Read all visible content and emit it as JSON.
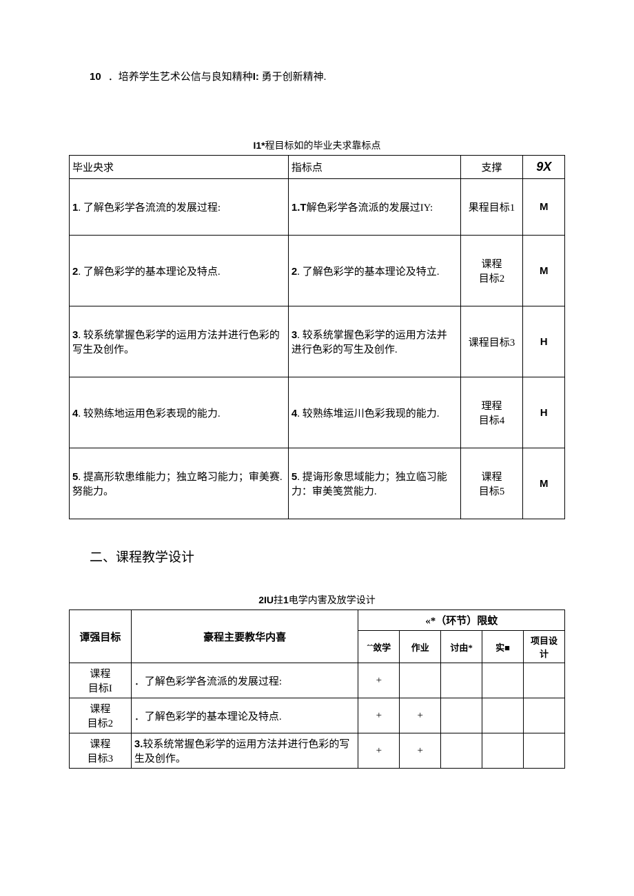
{
  "intro": {
    "num": "10",
    "text_before": "．培养学生艺术公信与良知精种",
    "bold_mid": "I:",
    "text_after": " 勇于创新精神."
  },
  "table1": {
    "caption_prefix": "I1*",
    "caption_rest": "程目标如的毕业夫求靠标点",
    "headers": {
      "c1": "毕业央求",
      "c2": "指标点",
      "c3": "支撑",
      "c4": "9X"
    },
    "rows": [
      {
        "num1": "1",
        "t1": ". 了解色彩学各流流的发展过程:",
        "num2": "1.T",
        "t2": "解色彩学各流派的发展过IY:",
        "c3": "果程目标1",
        "c4": "M"
      },
      {
        "num1": "2",
        "t1": ". 了解色彩学的基本理论及特点.",
        "num2": "2",
        "t2": ". 了解色彩学的基本理论及特立.",
        "c3": "课程\n目标2",
        "c4": "M"
      },
      {
        "num1": "3",
        "t1": ". 较系统掌握色彩学的运用方法并进行色彩的写生及创作。",
        "num2": "3",
        "t2": ". 较系统掌握色彩学的运用方法并进行色彩的写生及创作.",
        "c3": "课程目标3",
        "c4": "H"
      },
      {
        "num1": "4",
        "t1": ". 较熟练地运用色彩表现的能力.",
        "num2": "4",
        "t2": ". 较熟练堆运川色彩我现的能力.",
        "c3": "理程\n目标4",
        "c4": "H"
      },
      {
        "num1": "5",
        "t1": ". 提高形软患维能力；独立略习能力；审美赛. 努能力。",
        "num2": "5",
        "t2": ". 提诲形象思域能力；独立临习能力：审美笺赏能力.",
        "c3": "课程\n目标5",
        "c4": "M"
      }
    ]
  },
  "section_heading": "二、课程教学设计",
  "table2": {
    "caption_prefix": "2IU",
    "caption_mid": "拄",
    "caption_prefix2": "1",
    "caption_rest": "电学内害及放学设计",
    "headers": {
      "goal": "谭强目标",
      "content": "豪程主要教华内喜",
      "group": "«*（环节）限蚊",
      "sub": {
        "s1": "ˆˆ敛学",
        "s2": "作业",
        "s3": "讨由*",
        "s4": "实■",
        "s5": "项目设计"
      }
    },
    "rows": [
      {
        "goal": "课程\n目标I",
        "content_pre": "．",
        "content": "了解色彩学各流派的发展过程:",
        "marks": [
          "+",
          "",
          "",
          "",
          ""
        ]
      },
      {
        "goal": "课程\n目标2",
        "content_pre": "．",
        "content": "了解色彩学的基本理论及特点.",
        "marks": [
          "+",
          "+",
          "",
          "",
          ""
        ]
      },
      {
        "goal": "课程\n目标3",
        "content_pre": "3.",
        "content": "较系统常握色彩学的运用方法并进行色彩的写生及创作。",
        "marks": [
          "+",
          "+",
          "",
          "",
          ""
        ]
      }
    ]
  }
}
